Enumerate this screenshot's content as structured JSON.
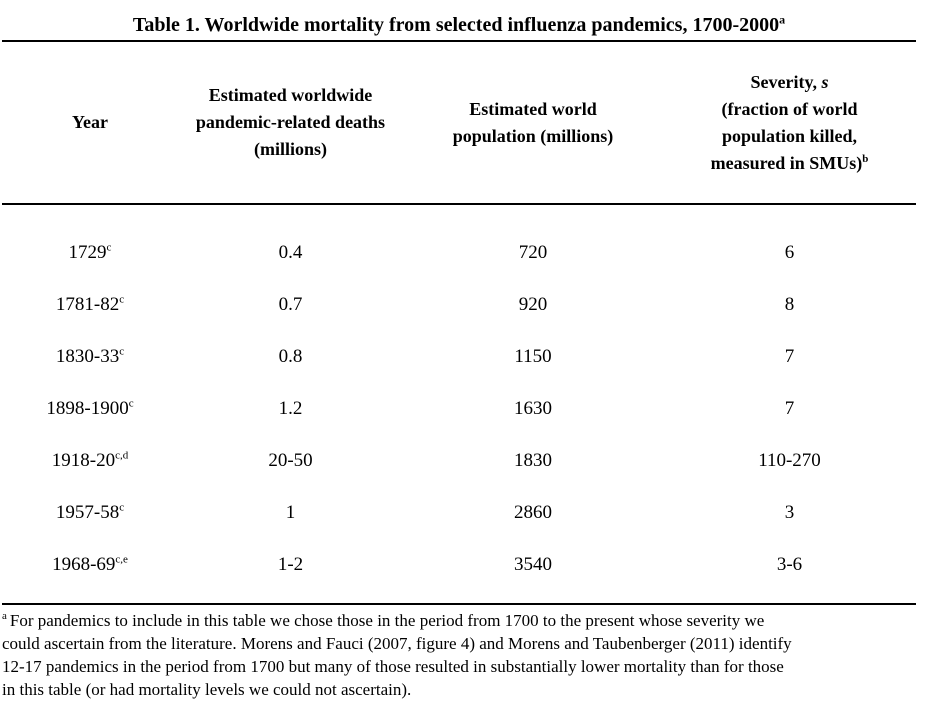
{
  "title": {
    "text": "Table 1. Worldwide mortality from selected influenza pandemics, 1700-2000",
    "superscript": "a"
  },
  "table": {
    "headers": {
      "year": "Year",
      "deaths": "Estimated worldwide pandemic-related deaths (millions)",
      "population": "Estimated world population (millions)",
      "severity_prefix": "Severity, ",
      "severity_symbol": "s",
      "severity_rest": "(fraction of world population killed, measured in SMUs)",
      "severity_superscript": "b"
    },
    "rows": [
      {
        "year": "1729",
        "year_sup": "c",
        "deaths": "0.4",
        "population": "720",
        "severity": "6"
      },
      {
        "year": "1781-82",
        "year_sup": "c",
        "deaths": "0.7",
        "population": "920",
        "severity": "8"
      },
      {
        "year": "1830-33",
        "year_sup": "c",
        "deaths": "0.8",
        "population": "1150",
        "severity": "7"
      },
      {
        "year": "1898-1900",
        "year_sup": "c",
        "deaths": "1.2",
        "population": "1630",
        "severity": "7"
      },
      {
        "year": "1918-20",
        "year_sup": "c,d",
        "deaths": "20-50",
        "population": "1830",
        "severity": "110-270"
      },
      {
        "year": "1957-58",
        "year_sup": "c",
        "deaths": "1",
        "population": "2860",
        "severity": "3"
      },
      {
        "year": "1968-69",
        "year_sup": "c,e",
        "deaths": "1-2",
        "population": "3540",
        "severity": "3-6"
      }
    ]
  },
  "footnote": {
    "marker": "a",
    "lines": [
      "For pandemics to include in this table we chose those in the period from 1700 to the present whose severity we",
      "could ascertain from the literature. Morens and Fauci (2007, figure 4) and Morens and Taubenberger (2011) identify",
      "12-17 pandemics in the period from 1700 but many of those resulted in substantially lower mortality than for those",
      "in this table (or had mortality levels we could not ascertain)."
    ]
  },
  "colors": {
    "background": "#ffffff",
    "text": "#000000",
    "rule": "#000000"
  }
}
